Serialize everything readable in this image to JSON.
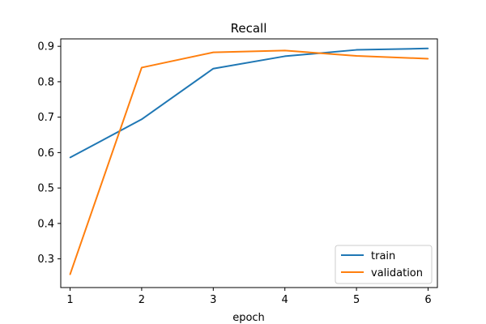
{
  "chart_data": {
    "type": "line",
    "title": "Recall",
    "xlabel": "epoch",
    "ylabel": "",
    "x": [
      1,
      2,
      3,
      4,
      5,
      6
    ],
    "xlim": [
      0.87,
      6.13
    ],
    "ylim": [
      0.219,
      0.921
    ],
    "xticks": [
      1,
      2,
      3,
      4,
      5,
      6
    ],
    "yticks": [
      0.3,
      0.4,
      0.5,
      0.6,
      0.7,
      0.8,
      0.9
    ],
    "grid": false,
    "legend_position": "lower-right",
    "series": [
      {
        "name": "train",
        "color": "#1f77b4",
        "values": [
          0.586,
          0.694,
          0.837,
          0.872,
          0.89,
          0.894
        ]
      },
      {
        "name": "validation",
        "color": "#ff7f0e",
        "values": [
          0.256,
          0.84,
          0.883,
          0.888,
          0.873,
          0.865
        ]
      }
    ]
  }
}
